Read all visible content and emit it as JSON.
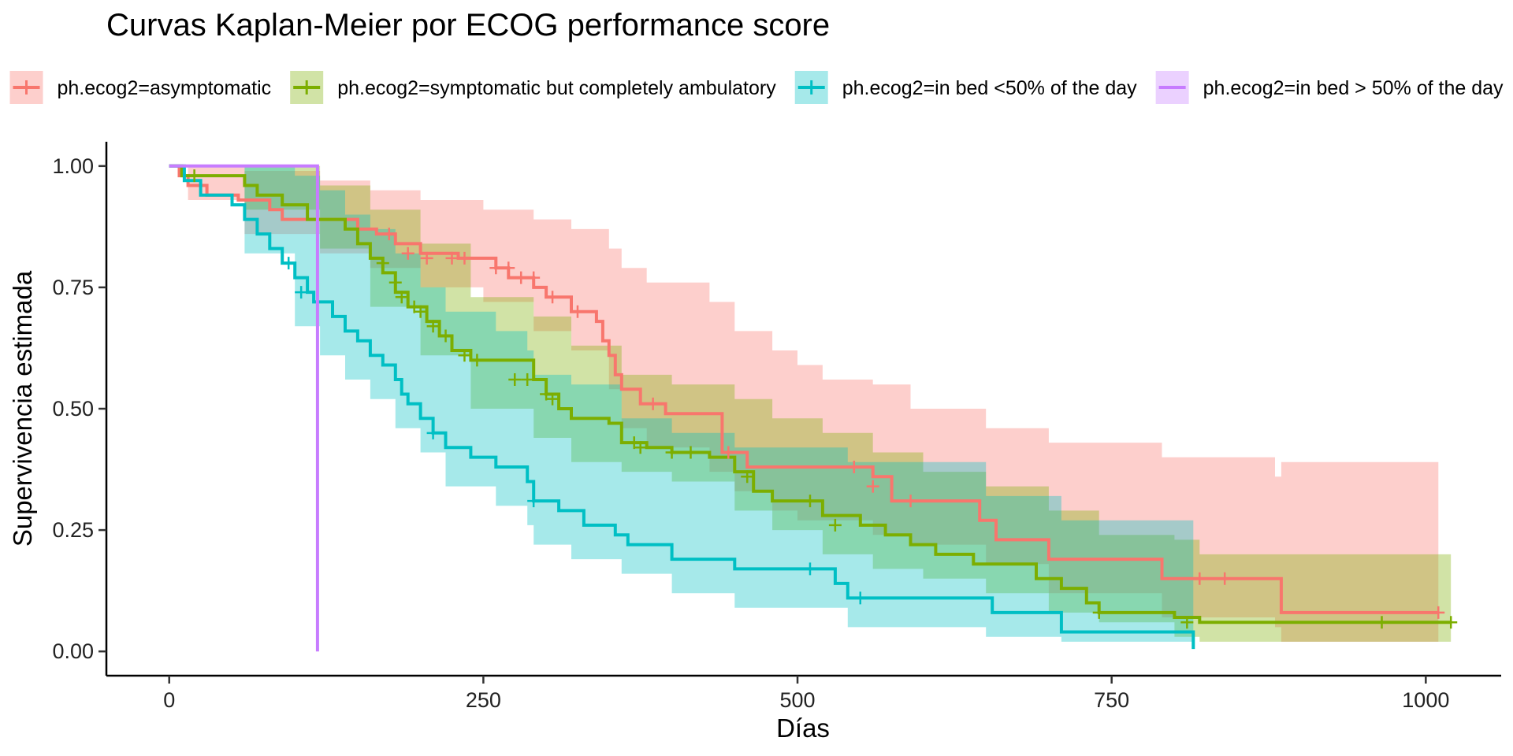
{
  "chart_data": {
    "type": "line",
    "subtype": "kaplan-meier step survival curves with 95% confidence bands and censoring marks",
    "title": "Curvas Kaplan-Meier por ECOG performance score",
    "xlabel": "Días",
    "ylabel": "Supervivencia estimada",
    "xlim": [
      -50,
      1060
    ],
    "ylim": [
      -0.05,
      1.05
    ],
    "xticks": [
      0,
      250,
      500,
      750,
      1000
    ],
    "xtick_labels": [
      "0",
      "250",
      "500",
      "750",
      "1000"
    ],
    "yticks": [
      0,
      0.25,
      0.5,
      0.75,
      1
    ],
    "ytick_labels": [
      "0.00",
      "0.25",
      "0.50",
      "0.75",
      "1.00"
    ],
    "grid": false,
    "legend_position": "top",
    "series": [
      {
        "name": "ph.ecog2=asymptomatic",
        "color": "#F8766D",
        "steps": [
          [
            0,
            1
          ],
          [
            8,
            0.98
          ],
          [
            15,
            0.96
          ],
          [
            30,
            0.94
          ],
          [
            55,
            0.93
          ],
          [
            80,
            0.91
          ],
          [
            90,
            0.89
          ],
          [
            120,
            0.89
          ],
          [
            150,
            0.87
          ],
          [
            165,
            0.86
          ],
          [
            180,
            0.84
          ],
          [
            200,
            0.82
          ],
          [
            230,
            0.81
          ],
          [
            260,
            0.79
          ],
          [
            270,
            0.77
          ],
          [
            290,
            0.75
          ],
          [
            300,
            0.73
          ],
          [
            320,
            0.7
          ],
          [
            340,
            0.68
          ],
          [
            345,
            0.64
          ],
          [
            350,
            0.61
          ],
          [
            355,
            0.57
          ],
          [
            360,
            0.54
          ],
          [
            375,
            0.51
          ],
          [
            395,
            0.49
          ],
          [
            440,
            0.41
          ],
          [
            460,
            0.38
          ],
          [
            560,
            0.36
          ],
          [
            575,
            0.31
          ],
          [
            640,
            0.31
          ],
          [
            645,
            0.27
          ],
          [
            658,
            0.23
          ],
          [
            700,
            0.19
          ],
          [
            790,
            0.15
          ],
          [
            880,
            0.15
          ],
          [
            885,
            0.08
          ],
          [
            1010,
            0.08
          ]
        ],
        "upper": [
          [
            0,
            1
          ],
          [
            15,
            1
          ],
          [
            60,
            0.99
          ],
          [
            120,
            0.97
          ],
          [
            160,
            0.95
          ],
          [
            200,
            0.93
          ],
          [
            250,
            0.91
          ],
          [
            290,
            0.89
          ],
          [
            320,
            0.87
          ],
          [
            350,
            0.83
          ],
          [
            360,
            0.79
          ],
          [
            380,
            0.76
          ],
          [
            430,
            0.72
          ],
          [
            450,
            0.66
          ],
          [
            480,
            0.62
          ],
          [
            500,
            0.59
          ],
          [
            520,
            0.56
          ],
          [
            560,
            0.55
          ],
          [
            590,
            0.5
          ],
          [
            650,
            0.46
          ],
          [
            700,
            0.43
          ],
          [
            790,
            0.4
          ],
          [
            880,
            0.36
          ],
          [
            885,
            0.39
          ],
          [
            1010,
            0.39
          ]
        ],
        "lower": [
          [
            0,
            1
          ],
          [
            15,
            0.93
          ],
          [
            60,
            0.86
          ],
          [
            120,
            0.82
          ],
          [
            160,
            0.79
          ],
          [
            200,
            0.75
          ],
          [
            250,
            0.72
          ],
          [
            290,
            0.66
          ],
          [
            320,
            0.62
          ],
          [
            350,
            0.54
          ],
          [
            360,
            0.46
          ],
          [
            380,
            0.42
          ],
          [
            430,
            0.37
          ],
          [
            450,
            0.33
          ],
          [
            480,
            0.29
          ],
          [
            500,
            0.27
          ],
          [
            520,
            0.27
          ],
          [
            560,
            0.24
          ],
          [
            590,
            0.22
          ],
          [
            650,
            0.18
          ],
          [
            700,
            0.12
          ],
          [
            790,
            0.07
          ],
          [
            880,
            0.05
          ],
          [
            885,
            0.02
          ],
          [
            1010,
            0.02
          ]
        ],
        "censor": [
          [
            175,
            0.86
          ],
          [
            190,
            0.82
          ],
          [
            205,
            0.81
          ],
          [
            225,
            0.81
          ],
          [
            235,
            0.81
          ],
          [
            260,
            0.79
          ],
          [
            270,
            0.79
          ],
          [
            280,
            0.77
          ],
          [
            290,
            0.77
          ],
          [
            305,
            0.73
          ],
          [
            325,
            0.7
          ],
          [
            385,
            0.51
          ],
          [
            445,
            0.41
          ],
          [
            545,
            0.38
          ],
          [
            560,
            0.34
          ],
          [
            590,
            0.31
          ],
          [
            820,
            0.15
          ],
          [
            840,
            0.15
          ],
          [
            1010,
            0.08
          ]
        ]
      },
      {
        "name": "ph.ecog2=symptomatic but completely ambulatory",
        "color": "#7CAE00",
        "steps": [
          [
            0,
            1
          ],
          [
            10,
            0.98
          ],
          [
            60,
            0.96
          ],
          [
            70,
            0.94
          ],
          [
            90,
            0.92
          ],
          [
            110,
            0.89
          ],
          [
            140,
            0.87
          ],
          [
            150,
            0.84
          ],
          [
            160,
            0.81
          ],
          [
            170,
            0.78
          ],
          [
            180,
            0.74
          ],
          [
            190,
            0.71
          ],
          [
            205,
            0.68
          ],
          [
            215,
            0.65
          ],
          [
            225,
            0.62
          ],
          [
            240,
            0.6
          ],
          [
            290,
            0.56
          ],
          [
            300,
            0.53
          ],
          [
            310,
            0.5
          ],
          [
            320,
            0.48
          ],
          [
            350,
            0.47
          ],
          [
            360,
            0.43
          ],
          [
            380,
            0.42
          ],
          [
            400,
            0.41
          ],
          [
            430,
            0.4
          ],
          [
            450,
            0.37
          ],
          [
            465,
            0.33
          ],
          [
            480,
            0.31
          ],
          [
            520,
            0.28
          ],
          [
            550,
            0.26
          ],
          [
            570,
            0.24
          ],
          [
            590,
            0.22
          ],
          [
            610,
            0.2
          ],
          [
            640,
            0.18
          ],
          [
            690,
            0.15
          ],
          [
            710,
            0.13
          ],
          [
            730,
            0.1
          ],
          [
            740,
            0.08
          ],
          [
            800,
            0.07
          ],
          [
            820,
            0.06
          ],
          [
            1020,
            0.06
          ]
        ],
        "upper": [
          [
            0,
            1
          ],
          [
            60,
            1
          ],
          [
            120,
            0.96
          ],
          [
            160,
            0.91
          ],
          [
            200,
            0.84
          ],
          [
            240,
            0.73
          ],
          [
            290,
            0.69
          ],
          [
            320,
            0.63
          ],
          [
            360,
            0.57
          ],
          [
            400,
            0.55
          ],
          [
            450,
            0.52
          ],
          [
            480,
            0.48
          ],
          [
            520,
            0.45
          ],
          [
            560,
            0.41
          ],
          [
            600,
            0.37
          ],
          [
            650,
            0.34
          ],
          [
            700,
            0.29
          ],
          [
            740,
            0.24
          ],
          [
            800,
            0.23
          ],
          [
            820,
            0.2
          ],
          [
            1020,
            0.17
          ]
        ],
        "lower": [
          [
            0,
            1
          ],
          [
            60,
            0.91
          ],
          [
            120,
            0.83
          ],
          [
            160,
            0.71
          ],
          [
            200,
            0.61
          ],
          [
            240,
            0.5
          ],
          [
            290,
            0.44
          ],
          [
            320,
            0.39
          ],
          [
            360,
            0.37
          ],
          [
            400,
            0.35
          ],
          [
            450,
            0.29
          ],
          [
            480,
            0.25
          ],
          [
            520,
            0.2
          ],
          [
            560,
            0.17
          ],
          [
            600,
            0.15
          ],
          [
            650,
            0.12
          ],
          [
            700,
            0.08
          ],
          [
            740,
            0.06
          ],
          [
            800,
            0.03
          ],
          [
            820,
            0.02
          ],
          [
            1020,
            0.02
          ]
        ],
        "censor": [
          [
            20,
            0.98
          ],
          [
            170,
            0.8
          ],
          [
            180,
            0.76
          ],
          [
            185,
            0.73
          ],
          [
            195,
            0.71
          ],
          [
            200,
            0.7
          ],
          [
            210,
            0.67
          ],
          [
            220,
            0.65
          ],
          [
            235,
            0.61
          ],
          [
            245,
            0.6
          ],
          [
            275,
            0.56
          ],
          [
            285,
            0.56
          ],
          [
            300,
            0.53
          ],
          [
            305,
            0.52
          ],
          [
            370,
            0.43
          ],
          [
            375,
            0.42
          ],
          [
            400,
            0.41
          ],
          [
            415,
            0.41
          ],
          [
            460,
            0.36
          ],
          [
            510,
            0.31
          ],
          [
            530,
            0.26
          ],
          [
            740,
            0.08
          ],
          [
            810,
            0.06
          ],
          [
            965,
            0.06
          ],
          [
            1020,
            0.06
          ]
        ]
      },
      {
        "name": "ph.ecog2=in bed <50% of the day",
        "color": "#00BFC4",
        "steps": [
          [
            0,
            1
          ],
          [
            12,
            0.97
          ],
          [
            25,
            0.94
          ],
          [
            50,
            0.92
          ],
          [
            60,
            0.89
          ],
          [
            70,
            0.86
          ],
          [
            80,
            0.83
          ],
          [
            90,
            0.8
          ],
          [
            100,
            0.77
          ],
          [
            110,
            0.74
          ],
          [
            115,
            0.72
          ],
          [
            130,
            0.69
          ],
          [
            140,
            0.66
          ],
          [
            150,
            0.64
          ],
          [
            160,
            0.61
          ],
          [
            170,
            0.59
          ],
          [
            180,
            0.56
          ],
          [
            185,
            0.53
          ],
          [
            190,
            0.51
          ],
          [
            200,
            0.48
          ],
          [
            210,
            0.45
          ],
          [
            220,
            0.42
          ],
          [
            240,
            0.4
          ],
          [
            260,
            0.38
          ],
          [
            285,
            0.35
          ],
          [
            290,
            0.31
          ],
          [
            310,
            0.29
          ],
          [
            330,
            0.26
          ],
          [
            355,
            0.24
          ],
          [
            365,
            0.22
          ],
          [
            400,
            0.19
          ],
          [
            450,
            0.17
          ],
          [
            530,
            0.14
          ],
          [
            540,
            0.11
          ],
          [
            655,
            0.08
          ],
          [
            710,
            0.04
          ],
          [
            810,
            0.04
          ],
          [
            815,
            0.005
          ]
        ],
        "upper": [
          [
            0,
            1
          ],
          [
            60,
            1
          ],
          [
            100,
            0.98
          ],
          [
            120,
            0.95
          ],
          [
            140,
            0.9
          ],
          [
            160,
            0.87
          ],
          [
            180,
            0.82
          ],
          [
            200,
            0.75
          ],
          [
            220,
            0.7
          ],
          [
            260,
            0.66
          ],
          [
            285,
            0.62
          ],
          [
            290,
            0.57
          ],
          [
            320,
            0.55
          ],
          [
            360,
            0.48
          ],
          [
            400,
            0.45
          ],
          [
            450,
            0.42
          ],
          [
            540,
            0.39
          ],
          [
            650,
            0.32
          ],
          [
            710,
            0.27
          ],
          [
            815,
            0.25
          ]
        ],
        "lower": [
          [
            0,
            1
          ],
          [
            60,
            0.82
          ],
          [
            100,
            0.67
          ],
          [
            120,
            0.61
          ],
          [
            140,
            0.56
          ],
          [
            160,
            0.52
          ],
          [
            180,
            0.46
          ],
          [
            200,
            0.41
          ],
          [
            220,
            0.34
          ],
          [
            260,
            0.3
          ],
          [
            285,
            0.26
          ],
          [
            290,
            0.22
          ],
          [
            320,
            0.19
          ],
          [
            360,
            0.16
          ],
          [
            400,
            0.12
          ],
          [
            450,
            0.09
          ],
          [
            540,
            0.05
          ],
          [
            650,
            0.03
          ],
          [
            710,
            0.02
          ],
          [
            815,
            0.01
          ]
        ],
        "censor": [
          [
            95,
            0.8
          ],
          [
            105,
            0.74
          ],
          [
            210,
            0.45
          ],
          [
            290,
            0.31
          ],
          [
            510,
            0.17
          ],
          [
            550,
            0.11
          ]
        ]
      },
      {
        "name": "ph.ecog2=in bed > 50% of the day",
        "color": "#C77CFF",
        "steps": [
          [
            0,
            1
          ],
          [
            118,
            1
          ],
          [
            118,
            0
          ]
        ],
        "censor": []
      }
    ]
  }
}
